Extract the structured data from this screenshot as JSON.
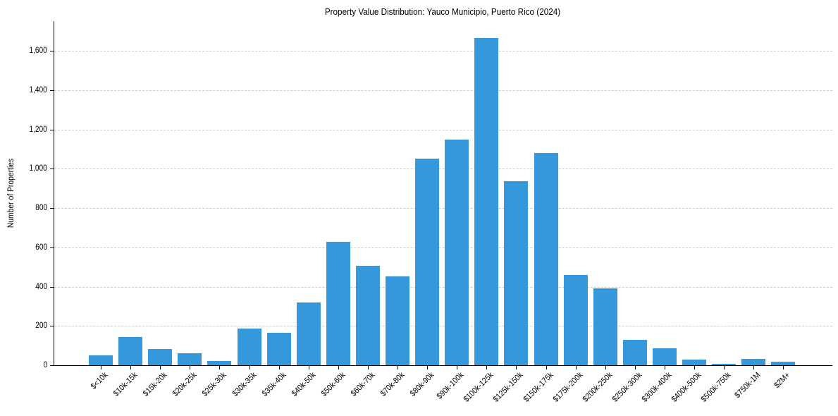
{
  "chart_data": {
    "type": "bar",
    "title": "Property Value Distribution: Yauco Municipio, Puerto Rico (2024)",
    "xlabel": "",
    "ylabel": "Number of Properties",
    "ylim": [
      0,
      1750
    ],
    "grid": {
      "y": true,
      "x": false,
      "style": "dashed"
    },
    "legend": null,
    "color": "#3498db",
    "yticks": [
      "0",
      "200",
      "400",
      "600",
      "800",
      "1,000",
      "1,200",
      "1,400",
      "1,600"
    ],
    "ytick_values": [
      0,
      200,
      400,
      600,
      800,
      1000,
      1200,
      1400,
      1600
    ],
    "categories": [
      "$<10k",
      "$10k-15k",
      "$15k-20k",
      "$20k-25k",
      "$25k-30k",
      "$30k-35k",
      "$35k-40k",
      "$40k-50k",
      "$50k-60k",
      "$60k-70k",
      "$70k-80k",
      "$80k-90k",
      "$90k-100k",
      "$100k-125k",
      "$125k-150k",
      "$150k-175k",
      "$175k-200k",
      "$200k-250k",
      "$250k-300k",
      "$300k-400k",
      "$400k-500k",
      "$500k-750k",
      "$750k-1M",
      "$2M+"
    ],
    "values": [
      50,
      143,
      83,
      61,
      22,
      187,
      165,
      319,
      628,
      506,
      452,
      1051,
      1148,
      1665,
      936,
      1080,
      459,
      392,
      129,
      86,
      29,
      7,
      33,
      18
    ]
  }
}
